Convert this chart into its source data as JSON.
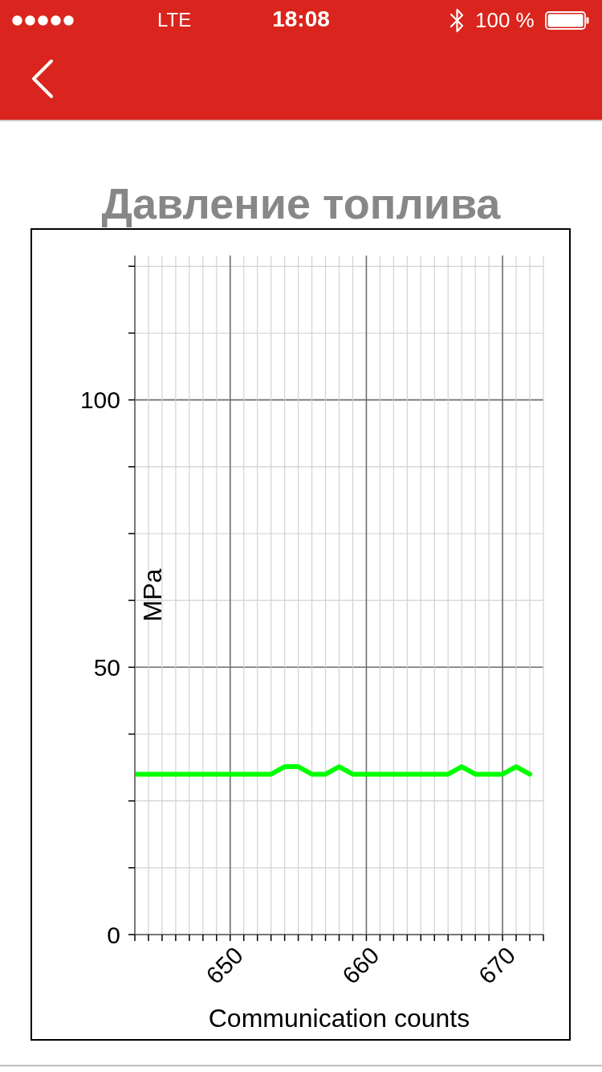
{
  "chart_data": {
    "type": "line",
    "title": "Давление топлива",
    "xlabel": "Communication counts",
    "ylabel": "MPa",
    "x": [
      643,
      644,
      645,
      646,
      647,
      648,
      649,
      650,
      651,
      652,
      653,
      654,
      655,
      656,
      657,
      658,
      659,
      660,
      661,
      662,
      663,
      664,
      665,
      666,
      667,
      668,
      669,
      670,
      671,
      672
    ],
    "series": [
      {
        "color": "#00ff00",
        "values": [
          30,
          30,
          30,
          30,
          30,
          30,
          30,
          30,
          30,
          30,
          30,
          31.4,
          31.4,
          30,
          30,
          31.4,
          30,
          30,
          30,
          30,
          30,
          30,
          30,
          30,
          31.4,
          30,
          30,
          30,
          31.4,
          30
        ]
      }
    ],
    "xlim": [
      643,
      673
    ],
    "ylim": [
      0,
      127
    ],
    "xticks": [
      {
        "value": 643,
        "label": null
      },
      {
        "value": 644,
        "label": null
      },
      {
        "value": 645,
        "label": null
      },
      {
        "value": 646,
        "label": null
      },
      {
        "value": 647,
        "label": null
      },
      {
        "value": 648,
        "label": null
      },
      {
        "value": 649,
        "label": null
      },
      650,
      {
        "value": 651,
        "label": null
      },
      {
        "value": 652,
        "label": null
      },
      {
        "value": 653,
        "label": null
      },
      {
        "value": 654,
        "label": null
      },
      {
        "value": 655,
        "label": null
      },
      {
        "value": 656,
        "label": null
      },
      {
        "value": 657,
        "label": null
      },
      {
        "value": 658,
        "label": null
      },
      {
        "value": 659,
        "label": null
      },
      660,
      {
        "value": 661,
        "label": null
      },
      {
        "value": 662,
        "label": null
      },
      {
        "value": 663,
        "label": null
      },
      {
        "value": 664,
        "label": null
      },
      {
        "value": 665,
        "label": null
      },
      {
        "value": 666,
        "label": null
      },
      {
        "value": 667,
        "label": null
      },
      {
        "value": 668,
        "label": null
      },
      {
        "value": 669,
        "label": null
      },
      670,
      {
        "value": 671,
        "label": null
      },
      {
        "value": 672,
        "label": null
      },
      {
        "value": 673,
        "label": null
      }
    ],
    "yticks": [
      0,
      {
        "value": 12.5,
        "label": null
      },
      {
        "value": 25,
        "label": null
      },
      {
        "value": 37.5,
        "label": null
      },
      50,
      {
        "value": 62.5,
        "label": null
      },
      {
        "value": 75,
        "label": null
      },
      {
        "value": 87.5,
        "label": null
      },
      100,
      {
        "value": 112.5,
        "label": null
      },
      {
        "value": 125,
        "label": null
      }
    ],
    "grid": true,
    "annotations": [
      "LTE",
      "18:08",
      "100 %"
    ]
  }
}
